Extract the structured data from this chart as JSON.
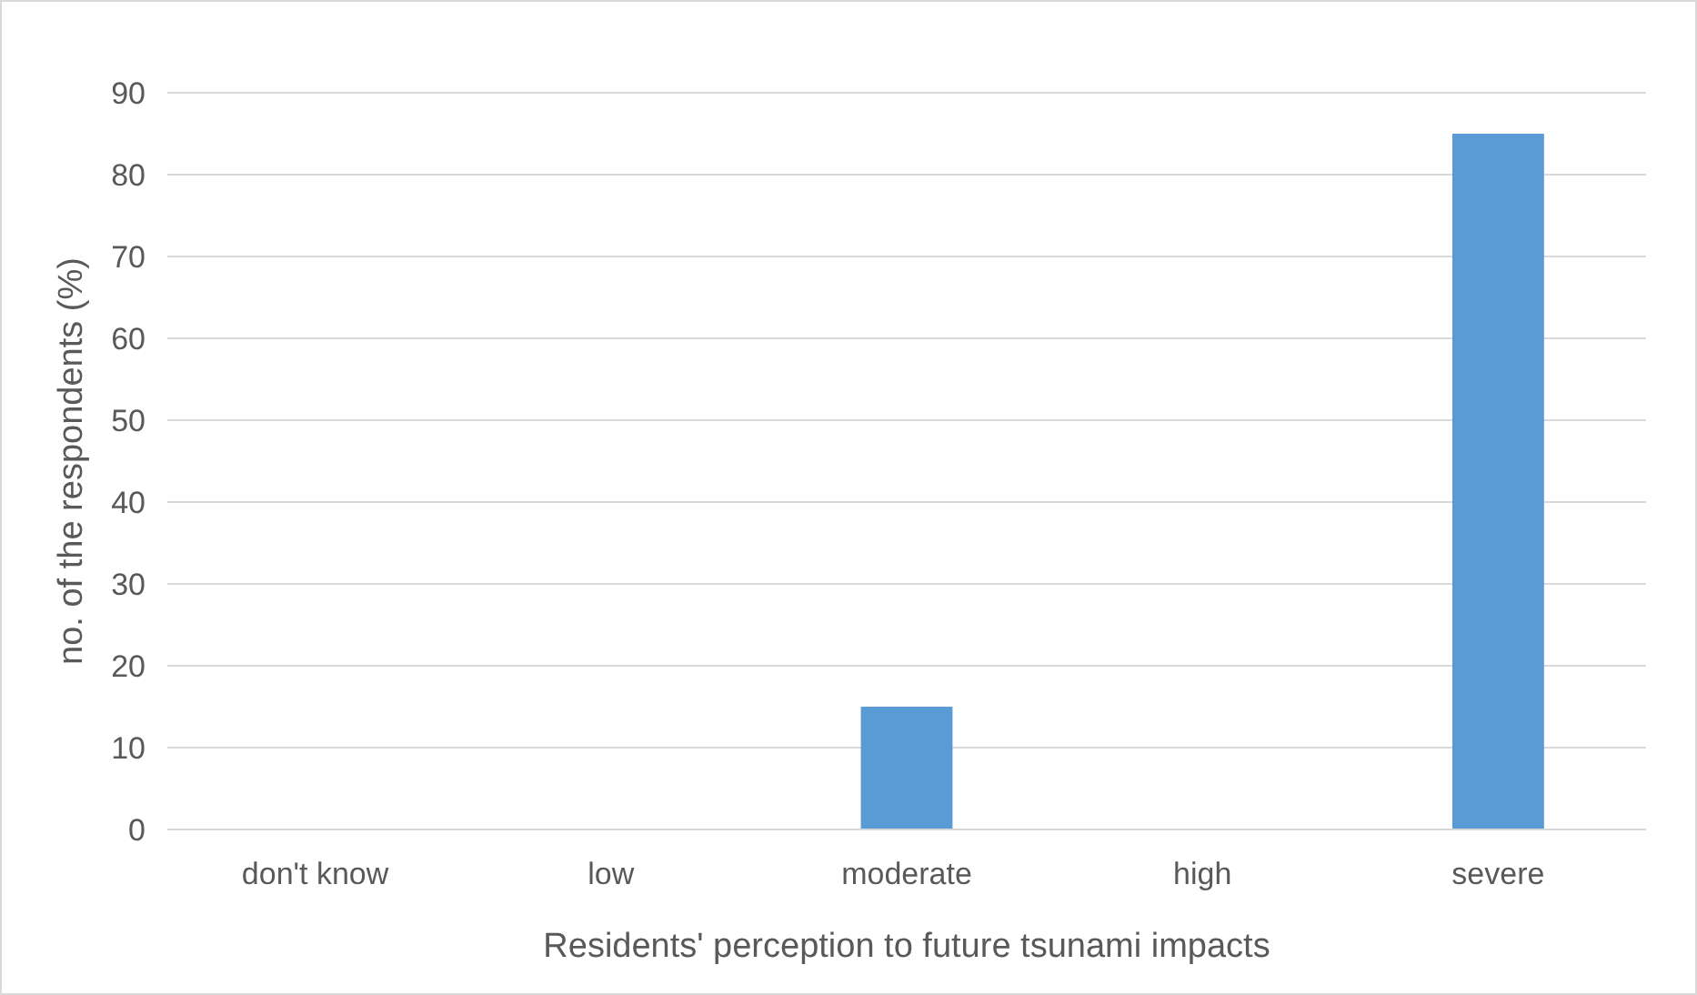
{
  "chart_data": {
    "type": "bar",
    "xlabel": "Residents' perception to future tsunami impacts",
    "ylabel": "no. of the respondents (%)",
    "categories": [
      "don't know",
      "low",
      "moderate",
      "high",
      "severe"
    ],
    "values": [
      0,
      0,
      15,
      0,
      85
    ],
    "color": "#5b9bd5",
    "ylim": [
      0,
      90
    ],
    "yticks": [
      0,
      10,
      20,
      30,
      40,
      50,
      60,
      70,
      80,
      90
    ],
    "grid": "y"
  }
}
